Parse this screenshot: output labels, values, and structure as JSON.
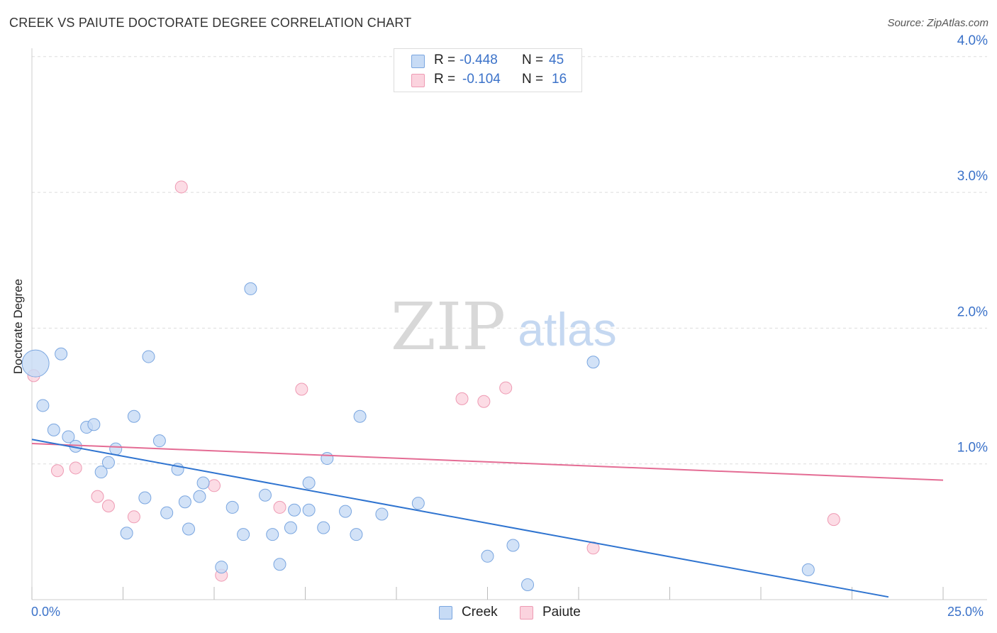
{
  "title": "CREEK VS PAIUTE DOCTORATE DEGREE CORRELATION CHART",
  "source": "Source: ZipAtlas.com",
  "watermark": {
    "zip": "ZIP",
    "atlas": "atlas"
  },
  "stats": [
    {
      "r_label": "R =",
      "r_value": "-0.448",
      "n_label": "N =",
      "n_value": "45",
      "color": "#aecbf2"
    },
    {
      "r_label": "R =",
      "r_value": "-0.104",
      "n_label": "N =",
      "n_value": "16",
      "color": "#f6c1d0"
    }
  ],
  "legend": [
    {
      "label": "Creek",
      "color": "#aecbf2"
    },
    {
      "label": "Paiute",
      "color": "#f6c1d0"
    }
  ],
  "x_axis": {
    "min_label": "0.0%",
    "max_label": "25.0%"
  },
  "colors": {
    "creek_fill": "#c7dbf5",
    "creek_stroke": "#7aa6e0",
    "creek_line": "#2f74d0",
    "paiute_fill": "#fbd3de",
    "paiute_stroke": "#ee9ab3",
    "paiute_line": "#e46c94",
    "tick_text": "#3b72c9",
    "grid": "#dddddd"
  },
  "chart_data": {
    "type": "scatter",
    "title": "CREEK VS PAIUTE DOCTORATE DEGREE CORRELATION CHART",
    "xlabel": "",
    "ylabel": "Doctorate Degree",
    "xlim": [
      0,
      25
    ],
    "ylim": [
      0,
      4.1
    ],
    "y_ticks": [
      1.0,
      2.0,
      3.0,
      4.0
    ],
    "y_tick_labels": [
      "1.0%",
      "2.0%",
      "3.0%",
      "4.0%"
    ],
    "x_tick_labels": [
      "0.0%",
      "25.0%"
    ],
    "grid": true,
    "series": [
      {
        "name": "Creek",
        "R": -0.448,
        "N": 45,
        "trend": {
          "x": [
            0,
            23.5
          ],
          "y": [
            1.18,
            0.02
          ]
        },
        "points": [
          {
            "x": 0.1,
            "y": 1.74,
            "big": true
          },
          {
            "x": 0.3,
            "y": 1.43
          },
          {
            "x": 0.8,
            "y": 1.81
          },
          {
            "x": 0.6,
            "y": 1.25
          },
          {
            "x": 1.0,
            "y": 1.2
          },
          {
            "x": 1.2,
            "y": 1.13
          },
          {
            "x": 1.5,
            "y": 1.27
          },
          {
            "x": 1.7,
            "y": 1.29
          },
          {
            "x": 1.9,
            "y": 0.94
          },
          {
            "x": 2.1,
            "y": 1.01
          },
          {
            "x": 2.3,
            "y": 1.11
          },
          {
            "x": 2.6,
            "y": 0.49
          },
          {
            "x": 2.8,
            "y": 1.35
          },
          {
            "x": 3.1,
            "y": 0.75
          },
          {
            "x": 3.2,
            "y": 1.79
          },
          {
            "x": 3.5,
            "y": 1.17
          },
          {
            "x": 3.7,
            "y": 0.64
          },
          {
            "x": 4.0,
            "y": 0.96
          },
          {
            "x": 4.2,
            "y": 0.72
          },
          {
            "x": 4.3,
            "y": 0.52
          },
          {
            "x": 4.6,
            "y": 0.76
          },
          {
            "x": 4.7,
            "y": 0.86
          },
          {
            "x": 5.2,
            "y": 0.24
          },
          {
            "x": 5.5,
            "y": 0.68
          },
          {
            "x": 5.8,
            "y": 0.48
          },
          {
            "x": 6.0,
            "y": 2.29
          },
          {
            "x": 6.4,
            "y": 0.77
          },
          {
            "x": 6.6,
            "y": 0.48
          },
          {
            "x": 6.8,
            "y": 0.26
          },
          {
            "x": 7.1,
            "y": 0.53
          },
          {
            "x": 7.2,
            "y": 0.66
          },
          {
            "x": 7.6,
            "y": 0.66
          },
          {
            "x": 7.6,
            "y": 0.86
          },
          {
            "x": 8.0,
            "y": 0.53
          },
          {
            "x": 8.1,
            "y": 1.04
          },
          {
            "x": 8.6,
            "y": 0.65
          },
          {
            "x": 8.9,
            "y": 0.48
          },
          {
            "x": 9.0,
            "y": 1.35
          },
          {
            "x": 9.6,
            "y": 0.63
          },
          {
            "x": 10.6,
            "y": 0.71
          },
          {
            "x": 12.5,
            "y": 0.32
          },
          {
            "x": 13.2,
            "y": 0.4
          },
          {
            "x": 13.6,
            "y": 0.11
          },
          {
            "x": 15.4,
            "y": 1.75
          },
          {
            "x": 21.3,
            "y": 0.22
          }
        ]
      },
      {
        "name": "Paiute",
        "R": -0.104,
        "N": 16,
        "trend": {
          "x": [
            0,
            25
          ],
          "y": [
            1.15,
            0.88
          ]
        },
        "points": [
          {
            "x": 0.05,
            "y": 1.65
          },
          {
            "x": 0.7,
            "y": 0.95
          },
          {
            "x": 1.2,
            "y": 0.97
          },
          {
            "x": 1.8,
            "y": 0.76
          },
          {
            "x": 2.1,
            "y": 0.69
          },
          {
            "x": 2.8,
            "y": 0.61
          },
          {
            "x": 4.1,
            "y": 3.04
          },
          {
            "x": 5.0,
            "y": 0.84
          },
          {
            "x": 5.2,
            "y": 0.18
          },
          {
            "x": 6.8,
            "y": 0.68
          },
          {
            "x": 7.4,
            "y": 1.55
          },
          {
            "x": 11.8,
            "y": 1.48
          },
          {
            "x": 12.4,
            "y": 1.46
          },
          {
            "x": 13.0,
            "y": 1.56
          },
          {
            "x": 15.4,
            "y": 0.38
          },
          {
            "x": 22.0,
            "y": 0.59
          }
        ]
      }
    ]
  }
}
